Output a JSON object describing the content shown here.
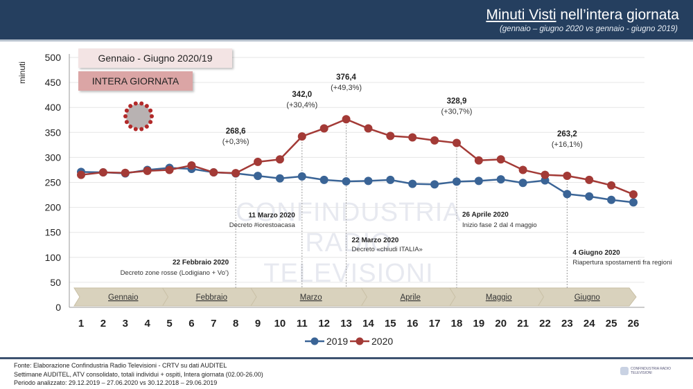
{
  "header": {
    "title_underlined": "Minuti Visti",
    "title_rest": " nell’intera giornata",
    "subtitle": "(gennaio – giugno 2020 vs gennaio - giugno 2019)"
  },
  "boxes": {
    "period": "Gennaio - Giugno 2020/19",
    "scope": "INTERA GIORNATA"
  },
  "watermark": [
    "CONFINDUSTRIA",
    "RADIO TELEVISIONI"
  ],
  "chart_data": {
    "type": "line",
    "ylabel": "minuti",
    "ylim": [
      0,
      500
    ],
    "yticks": [
      0,
      50,
      100,
      150,
      200,
      250,
      300,
      350,
      400,
      450,
      500
    ],
    "x": [
      1,
      2,
      3,
      4,
      5,
      6,
      7,
      8,
      9,
      10,
      11,
      12,
      13,
      14,
      15,
      16,
      17,
      18,
      19,
      20,
      21,
      22,
      23,
      24,
      25,
      26
    ],
    "series": [
      {
        "name": "2019",
        "color": "#3a6496",
        "values": [
          271,
          270,
          268,
          275,
          279,
          277,
          270,
          268,
          263,
          258,
          262,
          255,
          252,
          253,
          255,
          247,
          246,
          251.6,
          253,
          256,
          249,
          254,
          226.7,
          222,
          215,
          210
        ]
      },
      {
        "name": "2020",
        "color": "#a33a36",
        "values": [
          265,
          270,
          269,
          273,
          275,
          284,
          270,
          268.6,
          291,
          296,
          342.0,
          358,
          376.4,
          358,
          343,
          340,
          334,
          328.9,
          294,
          296,
          275,
          265,
          263.2,
          255,
          244,
          226
        ]
      }
    ],
    "data_labels": [
      {
        "week": 8,
        "value": "268,6",
        "pct": "(+0,3%)"
      },
      {
        "week": 11,
        "value": "342,0",
        "pct": "(+30,4%)"
      },
      {
        "week": 13,
        "value": "376,4",
        "pct": "(+49,3%)"
      },
      {
        "week": 18,
        "value": "328,9",
        "pct": "(+30,7%)"
      },
      {
        "week": 23,
        "value": "263,2",
        "pct": "(+16,1%)"
      }
    ],
    "events": [
      {
        "week": 8,
        "date": "22 Febbraio 2020",
        "text": "Decreto zone rosse (Lodigiano + Vo’)"
      },
      {
        "week": 11,
        "date": "11 Marzo 2020",
        "text": "Decreto #iorestoacasa"
      },
      {
        "week": 13,
        "date": "22 Marzo 2020",
        "text": "Decreto «chiudi ITALIA»"
      },
      {
        "week": 18,
        "date": "26 Aprile 2020",
        "text": "Inizio fase 2 dal 4 maggio"
      },
      {
        "week": 23,
        "date": "4 Giugno 2020",
        "text": "Riapertura spostamenti fra regioni"
      }
    ],
    "months": [
      {
        "label": "Gennaio",
        "from": 1,
        "to": 5
      },
      {
        "label": "Febbraio",
        "from": 5,
        "to": 9
      },
      {
        "label": "Marzo",
        "from": 9,
        "to": 14
      },
      {
        "label": "Aprile",
        "from": 14,
        "to": 18
      },
      {
        "label": "Maggio",
        "from": 18,
        "to": 22
      },
      {
        "label": "Giugno",
        "from": 22,
        "to": 26
      }
    ],
    "legend_position": "bottom"
  },
  "footer": {
    "lines": [
      "Fonte: Elaborazione Confindustria Radio Televisioni - CRTV su dati AUDITEL",
      "Settimane AUDITEL, ATV consolidato, totali individui + ospiti, Intera giornata (02.00-26.00)",
      "Periodo analizzato: 29.12.2019 – 27.06.2020 vs 30.12.2018 – 29.06.2019"
    ],
    "logo_text": "CONFINDUSTRIA RADIO TELEVISIONI"
  }
}
